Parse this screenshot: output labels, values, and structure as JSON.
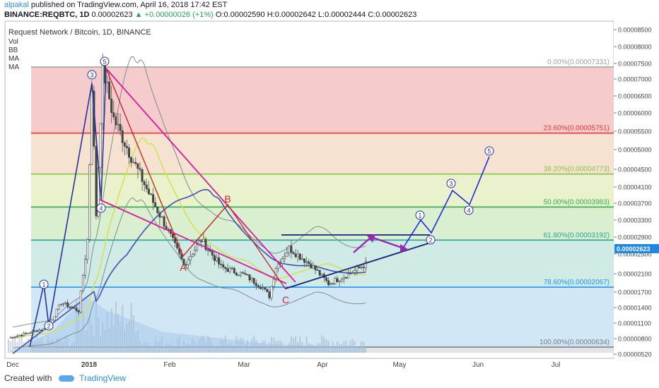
{
  "header": {
    "user": "alpakal",
    "published": "published on TradingView.com, April 16, 2018 17:42 EST",
    "symbol": "BINANCE:REQBTC, 1D",
    "last": "0.00002623",
    "change": "▲ +0.00000026 (+1%)",
    "o_label": "O:",
    "o": "0.00002590",
    "h_label": "H:",
    "h": "0.00002642",
    "l_label": "L:",
    "l": "0.00002444",
    "c_label": "C:",
    "c": "0.00002623"
  },
  "footer": {
    "created_with": "Created with",
    "brand": "TradingView"
  },
  "chart_data": {
    "type": "candlestick",
    "title": "Request Network / Bitcoin, 1D, BINANCE",
    "indicators": [
      "Vol",
      "BB",
      "MA",
      "MA"
    ],
    "price_axis": {
      "ylim": [
        4.3e-06,
        8.7e-05
      ],
      "ticks": [
        "0.00008500",
        "0.00008000",
        "0.00007500",
        "0.00007000",
        "0.00006500",
        "0.00006000",
        "0.00005500",
        "0.00005000",
        "0.00004500",
        "0.00004100",
        "0.00003700",
        "0.00003300",
        "0.00002900",
        "0.00002500",
        "0.00002100",
        "0.00001700",
        "0.00001400",
        "0.00001100",
        "0.00000800",
        "0.00000520"
      ],
      "last_price": "0.00002623"
    },
    "time_axis": {
      "labels": [
        "Dec",
        "2018",
        "Feb",
        "Mar",
        "Apr",
        "May",
        "Jun",
        "Jul"
      ]
    },
    "fib_levels": [
      {
        "label": "0.00%(0.00007331)",
        "price": 7.331e-05,
        "color": "#9e9e9e"
      },
      {
        "label": "23.60%(0.00005751)",
        "price": 5.751e-05,
        "color": "#e53935"
      },
      {
        "label": "38.20%(0.00004773)",
        "price": 4.773e-05,
        "color": "#8bc34a"
      },
      {
        "label": "50.00%(0.00003983)",
        "price": 3.983e-05,
        "color": "#2eaa4a"
      },
      {
        "label": "61.80%(0.00003192)",
        "price": 3.192e-05,
        "color": "#26a69a"
      },
      {
        "label": "78.60%(0.00002067)",
        "price": 2.067e-05,
        "color": "#2196f3"
      },
      {
        "label": "100.00%(0.00000634)",
        "price": 6.34e-06,
        "color": "#787b86"
      }
    ],
    "fib_zones": [
      "#f5c2c2",
      "#f3ddc8",
      "#e6f0c4",
      "#d2ecc8",
      "#c8e8e2",
      "#c9e3f5",
      "#dedede"
    ],
    "elliott_labels": [
      "1",
      "2",
      "3",
      "4",
      "5"
    ],
    "projection_labels": [
      "1",
      "2",
      "3",
      "4",
      "5"
    ],
    "abc_labels": [
      "A",
      "B",
      "C"
    ]
  }
}
